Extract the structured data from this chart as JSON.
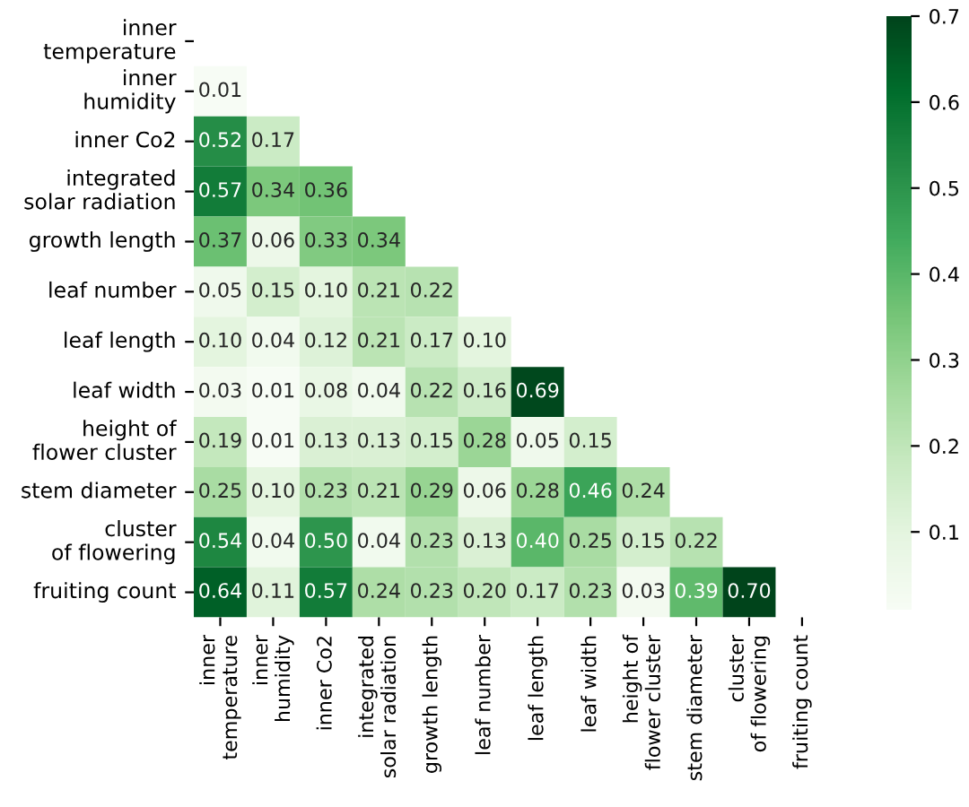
{
  "chart_data": {
    "type": "heatmap",
    "categories": [
      "inner\ntemperature",
      "inner\nhumidity",
      "inner Co2",
      "integrated\nsolar radiation",
      "growth length",
      "leaf number",
      "leaf length",
      "leaf width",
      "height of\nflower cluster",
      "stem diameter",
      "cluster\nof flowering",
      "fruiting count"
    ],
    "y_categories": [
      "inner\ntemperature",
      "inner\nhumidity",
      "inner Co2",
      "integrated\nsolar radiation",
      "growth length",
      "leaf number",
      "leaf length",
      "leaf width",
      "height of\nflower cluster",
      "stem diameter",
      "cluster\nof flowering",
      "fruiting count"
    ],
    "cells": [
      [
        null,
        null,
        null,
        null,
        null,
        null,
        null,
        null,
        null,
        null,
        null,
        null
      ],
      [
        0.01,
        null,
        null,
        null,
        null,
        null,
        null,
        null,
        null,
        null,
        null,
        null
      ],
      [
        0.52,
        0.17,
        null,
        null,
        null,
        null,
        null,
        null,
        null,
        null,
        null,
        null
      ],
      [
        0.57,
        0.34,
        0.36,
        null,
        null,
        null,
        null,
        null,
        null,
        null,
        null,
        null
      ],
      [
        0.37,
        0.06,
        0.33,
        0.34,
        null,
        null,
        null,
        null,
        null,
        null,
        null,
        null
      ],
      [
        0.05,
        0.15,
        0.1,
        0.21,
        0.22,
        null,
        null,
        null,
        null,
        null,
        null,
        null
      ],
      [
        0.1,
        0.04,
        0.12,
        0.21,
        0.17,
        0.1,
        null,
        null,
        null,
        null,
        null,
        null
      ],
      [
        0.03,
        0.01,
        0.08,
        0.04,
        0.22,
        0.16,
        0.69,
        null,
        null,
        null,
        null,
        null
      ],
      [
        0.19,
        0.01,
        0.13,
        0.13,
        0.15,
        0.28,
        0.05,
        0.15,
        null,
        null,
        null,
        null
      ],
      [
        0.25,
        0.1,
        0.23,
        0.21,
        0.29,
        0.06,
        0.28,
        0.46,
        0.24,
        null,
        null,
        null
      ],
      [
        0.54,
        0.04,
        0.5,
        0.04,
        0.23,
        0.13,
        0.4,
        0.25,
        0.15,
        0.22,
        null,
        null
      ],
      [
        0.64,
        0.11,
        0.57,
        0.24,
        0.23,
        0.2,
        0.17,
        0.23,
        0.03,
        0.39,
        0.7,
        null
      ]
    ],
    "cell_labels": [
      [
        null,
        null,
        null,
        null,
        null,
        null,
        null,
        null,
        null,
        null,
        null,
        null
      ],
      [
        "0.01",
        null,
        null,
        null,
        null,
        null,
        null,
        null,
        null,
        null,
        null,
        null
      ],
      [
        "0.52",
        "0.17",
        null,
        null,
        null,
        null,
        null,
        null,
        null,
        null,
        null,
        null
      ],
      [
        "0.57",
        "0.34",
        "0.36",
        null,
        null,
        null,
        null,
        null,
        null,
        null,
        null,
        null
      ],
      [
        "0.37",
        "0.06",
        "0.33",
        "0.34",
        null,
        null,
        null,
        null,
        null,
        null,
        null,
        null
      ],
      [
        "0.05",
        "0.15",
        "0.10",
        "0.21",
        "0.22",
        null,
        null,
        null,
        null,
        null,
        null,
        null
      ],
      [
        "0.10",
        "0.04",
        "0.12",
        "0.21",
        "0.17",
        "0.10",
        null,
        null,
        null,
        null,
        null,
        null
      ],
      [
        "0.03",
        "0.01",
        "0.08",
        "0.04",
        "0.22",
        "0.16",
        "0.69",
        null,
        null,
        null,
        null,
        null
      ],
      [
        "0.19",
        "0.01",
        "0.13",
        "0.13",
        "0.15",
        "0.28",
        "0.05",
        "0.15",
        null,
        null,
        null,
        null
      ],
      [
        "0.25",
        "0.10",
        "0.23",
        "0.21",
        "0.29",
        "0.06",
        "0.28",
        "0.46",
        "0.24",
        null,
        null,
        null
      ],
      [
        "0.54",
        "0.04",
        "0.50",
        "0.04",
        "0.23",
        "0.13",
        "0.40",
        "0.25",
        "0.15",
        "0.22",
        null,
        null
      ],
      [
        "0.64",
        "0.11",
        "0.57",
        "0.24",
        "0.23",
        "0.20",
        "0.17",
        "0.23",
        "0.03",
        "0.39",
        "0.70",
        null
      ]
    ],
    "clim": [
      0.01,
      0.7
    ],
    "cticks": [
      0.1,
      0.2,
      0.3,
      0.4,
      0.5,
      0.6,
      0.7
    ]
  }
}
